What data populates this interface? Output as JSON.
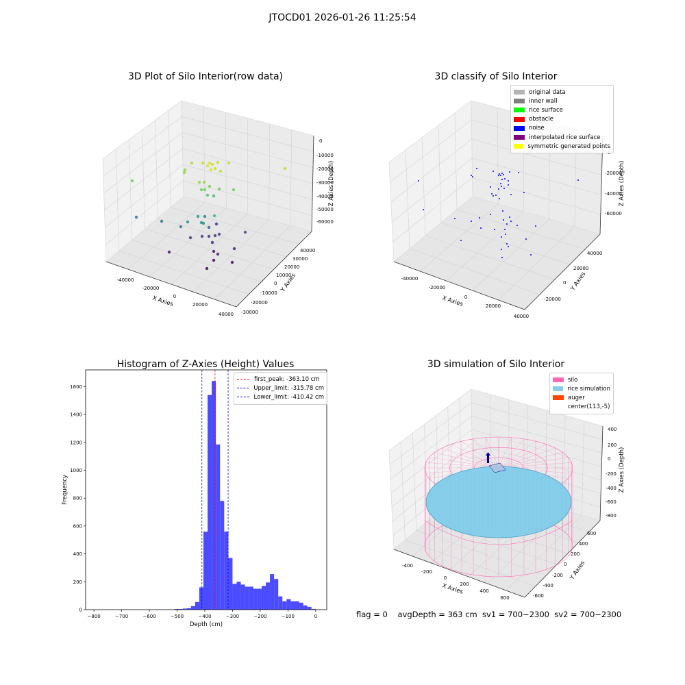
{
  "figure_title": "JTOCD01 2026-01-26 11:25:54",
  "status_line": "flag = 0    avgDepth = 363 cm  sv1 = 700~2300  sv2 = 700~2300",
  "panel_raw": {
    "title": "3D Plot of Silo Interior(row data)",
    "xlabel": "X Axies",
    "ylabel": "Y Axies",
    "zlabel": "Z Axies (Depth)",
    "x_ticks": [
      "-40000",
      "-20000",
      "0",
      "20000",
      "40000"
    ],
    "y_ticks": [
      "-30000",
      "-20000",
      "-10000",
      "0",
      "10000",
      "20000",
      "30000",
      "40000"
    ],
    "z_ticks": [
      "0",
      "-10000",
      "-20000",
      "-30000",
      "-40000",
      "-50000",
      "-60000"
    ]
  },
  "panel_classify": {
    "title": "3D classify of Silo Interior",
    "xlabel": "X Axies",
    "ylabel": "Y Axies",
    "zlabel": "Z Axies (Depth)",
    "x_ticks": [
      "-40000",
      "-20000",
      "0",
      "20000",
      "40000"
    ],
    "y_ticks": [
      "-20000",
      "0",
      "20000",
      "40000"
    ],
    "z_ticks": [
      "0",
      "-20000",
      "-40000",
      "-60000"
    ],
    "legend": [
      {
        "label": "original data",
        "color": "#b3b3b3"
      },
      {
        "label": "inner wall",
        "color": "#808080"
      },
      {
        "label": "rice surface",
        "color": "#00ff00"
      },
      {
        "label": "obstacle",
        "color": "#ff0000"
      },
      {
        "label": "noise",
        "color": "#0000ff"
      },
      {
        "label": "interpolated rice surface",
        "color": "#800080"
      },
      {
        "label": "symmetric generated points",
        "color": "#ffff00"
      }
    ]
  },
  "panel_sim": {
    "title": "3D simulation of Silo Interior",
    "xlabel": "X Axies",
    "ylabel": "Y Axies",
    "zlabel": "Z Axies (Depth)",
    "x_ticks": [
      "-400",
      "-200",
      "0",
      "200",
      "400",
      "600"
    ],
    "y_ticks": [
      "-600",
      "-400",
      "-200",
      "0",
      "200",
      "400",
      "600"
    ],
    "z_ticks": [
      "400",
      "200",
      "0",
      "-200",
      "-400",
      "-600",
      "-800"
    ],
    "legend": [
      {
        "label": "silo",
        "color": "#ff69b4"
      },
      {
        "label": "rice simulation",
        "color": "#87ceeb"
      },
      {
        "label": "auger",
        "color": "#ff4500"
      },
      {
        "label": "center(113,-5)",
        "color": ""
      }
    ]
  },
  "chart_data": [
    {
      "type": "bar",
      "title": "Histogram of Z-Axies (Height) Values",
      "xlabel": "Depth (cm)",
      "ylabel": "Frequency",
      "xlim": [
        -830,
        40
      ],
      "ylim": [
        0,
        1720
      ],
      "x_ticks": [
        -800,
        -700,
        -600,
        -500,
        -400,
        -300,
        -200,
        -100,
        0
      ],
      "y_ticks": [
        0,
        200,
        400,
        600,
        800,
        1000,
        1200,
        1400,
        1600
      ],
      "color": "#4b4bff",
      "bin_edges": [
        -510,
        -495,
        -480,
        -465,
        -450,
        -435,
        -420,
        -405,
        -390,
        -375,
        -360,
        -345,
        -330,
        -315,
        -300,
        -285,
        -270,
        -255,
        -240,
        -225,
        -210,
        -195,
        -180,
        -165,
        -150,
        -135,
        -120,
        -105,
        -90,
        -75,
        -60,
        -45,
        -30,
        -15,
        0
      ],
      "values": [
        5,
        5,
        8,
        10,
        25,
        55,
        160,
        560,
        1540,
        1640,
        1185,
        780,
        560,
        370,
        185,
        200,
        180,
        165,
        165,
        150,
        150,
        170,
        195,
        255,
        220,
        95,
        60,
        75,
        60,
        60,
        50,
        30,
        20,
        5
      ],
      "vlines": [
        {
          "label": "first_peak: -363.10 cm",
          "x": -363.1,
          "color": "#ff0000"
        },
        {
          "label": "Upper_limit: -315.78 cm",
          "x": -315.78,
          "color": "#0000ff"
        },
        {
          "label": "Lower_limit: -410.42 cm",
          "x": -410.42,
          "color": "#0000ff"
        }
      ]
    }
  ]
}
